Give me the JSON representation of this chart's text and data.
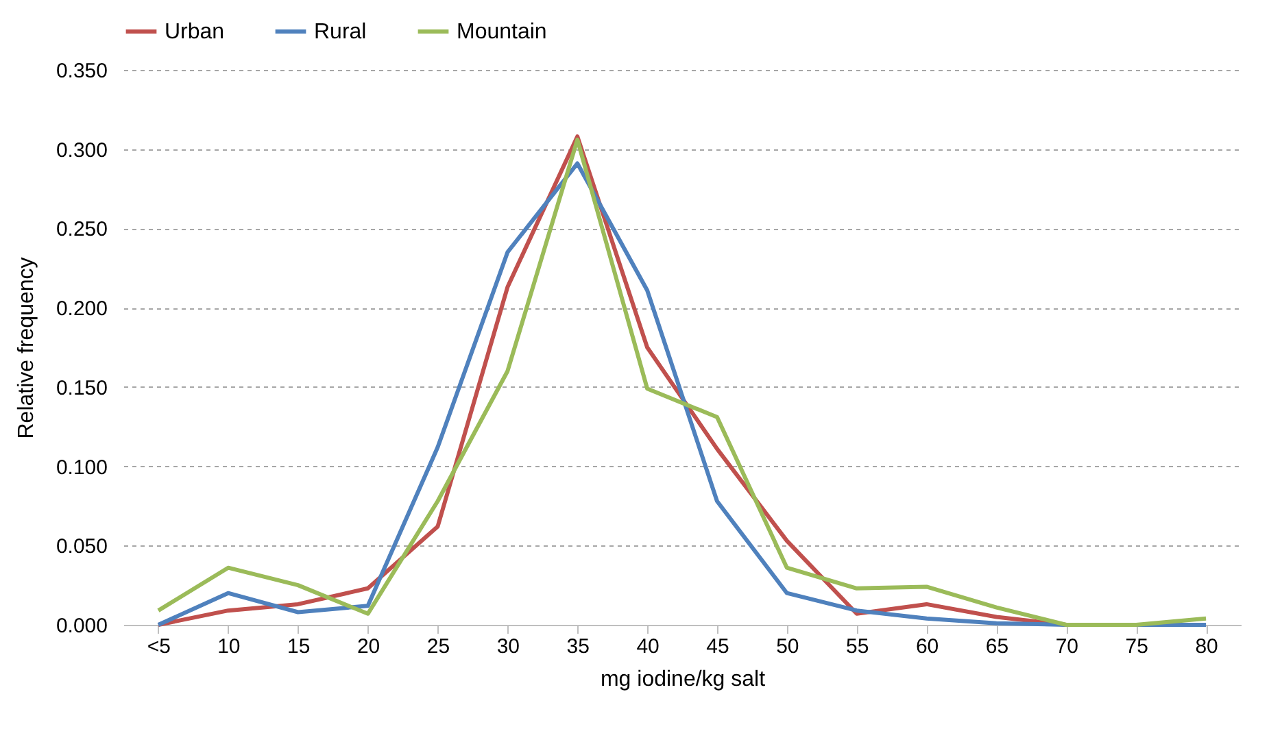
{
  "chart_data": {
    "type": "line",
    "xlabel": "mg iodine/kg salt",
    "ylabel": "Relative frequency",
    "categories": [
      "<5",
      "10",
      "15",
      "20",
      "25",
      "30",
      "35",
      "40",
      "45",
      "50",
      "55",
      "60",
      "65",
      "70",
      "75",
      "80"
    ],
    "series": [
      {
        "name": "Urban",
        "color": "#c0504d",
        "values": [
          0,
          0.009,
          0.013,
          0.023,
          0.062,
          0.213,
          0.308,
          0.175,
          0.111,
          0.053,
          0.007,
          0.013,
          0.005,
          0,
          0,
          0
        ]
      },
      {
        "name": "Rural",
        "color": "#4f81bd",
        "values": [
          0,
          0.02,
          0.008,
          0.012,
          0.112,
          0.235,
          0.291,
          0.211,
          0.078,
          0.02,
          0.009,
          0.004,
          0.001,
          0,
          0,
          0
        ]
      },
      {
        "name": "Mountain",
        "color": "#9bbb59",
        "values": [
          0.009,
          0.036,
          0.025,
          0.007,
          0.078,
          0.16,
          0.306,
          0.149,
          0.131,
          0.036,
          0.023,
          0.024,
          0.011,
          0,
          0,
          0.004
        ]
      }
    ],
    "ylim": [
      0,
      0.35
    ],
    "yticks": [
      {
        "value": 0,
        "label": "0.000"
      },
      {
        "value": 0.05,
        "label": "0.050"
      },
      {
        "value": 0.1,
        "label": "0.100"
      },
      {
        "value": 0.15,
        "label": "0.150"
      },
      {
        "value": 0.2,
        "label": "0.200"
      },
      {
        "value": 0.25,
        "label": "0.250"
      },
      {
        "value": 0.3,
        "label": "0.300"
      },
      {
        "value": 0.35,
        "label": "0.350"
      }
    ],
    "grid": "y",
    "legend": "top",
    "marker": "none",
    "line_style": "solid"
  }
}
